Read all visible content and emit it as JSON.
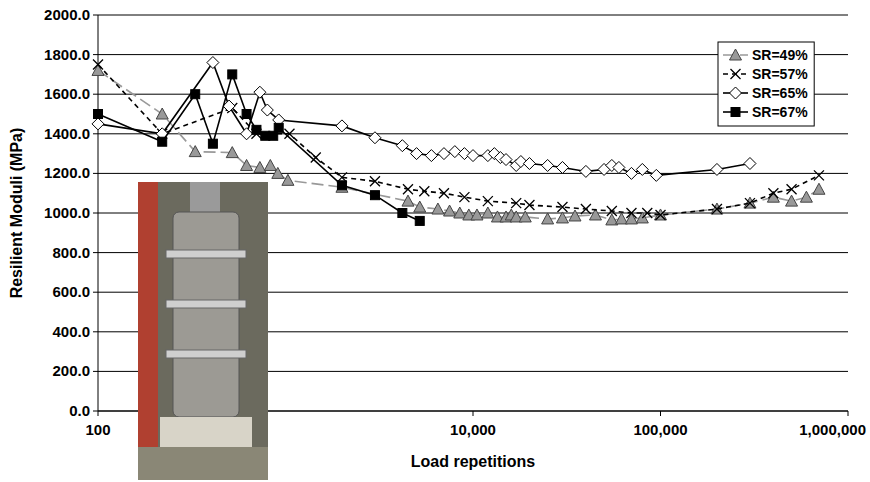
{
  "chart_data": {
    "type": "line",
    "x_label": "Load repetitions",
    "y_label": "Resilient Moduli (MPa)",
    "log": "x",
    "grid": true,
    "legend": "upper right",
    "xlim": [
      100,
      1000000
    ],
    "xticks": [
      100,
      {
        "value": 10000,
        "label": "10,000"
      },
      {
        "value": 100000,
        "label": "100,000"
      },
      {
        "value": 1000000,
        "label": "1,000,000"
      }
    ],
    "ylim": [
      0,
      2000
    ],
    "yticks": [
      {
        "value": 0,
        "label": "0.0"
      },
      {
        "value": 200,
        "label": "200.0"
      },
      {
        "value": 400,
        "label": "400.0"
      },
      {
        "value": 600,
        "label": "600.0"
      },
      {
        "value": 800,
        "label": "800.0"
      },
      {
        "value": 1000,
        "label": "1000.0"
      },
      {
        "value": 1200,
        "label": "1200.0"
      },
      {
        "value": 1400,
        "label": "1400.0"
      },
      {
        "value": 1600,
        "label": "1600.0"
      },
      {
        "value": 1800,
        "label": "1800.0"
      },
      {
        "value": 2000,
        "label": "2000.0"
      }
    ],
    "series": [
      {
        "name": "SR=49%",
        "color": "#999999",
        "marker": "triangle",
        "line_style": "longdash",
        "x": [
          100,
          220,
          330,
          520,
          620,
          730,
          830,
          910,
          1030,
          2000,
          4500,
          5200,
          6500,
          7500,
          8500,
          9500,
          10500,
          12000,
          13500,
          15000,
          16000,
          17000,
          19000,
          25000,
          30000,
          35000,
          45000,
          55000,
          62000,
          70000,
          80000,
          100000,
          200000,
          300000,
          400000,
          500000,
          600000,
          700000
        ],
        "values": [
          1720,
          1500,
          1310,
          1305,
          1240,
          1230,
          1240,
          1200,
          1165,
          1130,
          1060,
          1030,
          1020,
          1010,
          1000,
          990,
          990,
          1000,
          980,
          980,
          990,
          980,
          980,
          970,
          975,
          985,
          990,
          965,
          970,
          970,
          975,
          990,
          1020,
          1050,
          1080,
          1060,
          1080,
          1120
        ]
      },
      {
        "name": "SR=57%",
        "color": "#000000",
        "marker": "x",
        "line_style": "dashed",
        "x": [
          100,
          220,
          520,
          700,
          1050,
          1450,
          2000,
          3000,
          4500,
          5500,
          7000,
          9000,
          12000,
          17000,
          20000,
          30000,
          40000,
          55000,
          70000,
          85000,
          100000,
          200000,
          300000,
          400000,
          500000,
          700000
        ],
        "values": [
          1750,
          1400,
          1530,
          1400,
          1400,
          1280,
          1180,
          1160,
          1120,
          1110,
          1100,
          1080,
          1060,
          1050,
          1040,
          1030,
          1020,
          1010,
          1000,
          1000,
          990,
          1020,
          1050,
          1100,
          1120,
          1190
        ]
      },
      {
        "name": "SR=65%",
        "color": "#000000",
        "marker": "diamond",
        "line_style": "solid",
        "x": [
          100,
          220,
          410,
          500,
          620,
          730,
          800,
          920,
          2000,
          3000,
          4200,
          5000,
          6000,
          7000,
          8000,
          9000,
          10000,
          12000,
          13000,
          14000,
          15000,
          17000,
          18000,
          20000,
          25000,
          30000,
          40000,
          50000,
          55000,
          60000,
          70000,
          80000,
          95000,
          200000,
          300000
        ],
        "values": [
          1450,
          1400,
          1760,
          1540,
          1400,
          1610,
          1520,
          1470,
          1440,
          1380,
          1340,
          1300,
          1290,
          1300,
          1310,
          1300,
          1290,
          1290,
          1300,
          1280,
          1270,
          1240,
          1260,
          1250,
          1240,
          1230,
          1210,
          1220,
          1240,
          1230,
          1200,
          1220,
          1190,
          1220,
          1250
        ]
      },
      {
        "name": "SR=67%",
        "color": "#000000",
        "marker": "square",
        "line_style": "solid",
        "x": [
          100,
          220,
          330,
          410,
          520,
          620,
          700,
          780,
          860,
          920,
          2000,
          3000,
          4200,
          5200
        ],
        "values": [
          1500,
          1360,
          1600,
          1350,
          1700,
          1500,
          1420,
          1390,
          1390,
          1430,
          1140,
          1090,
          1000,
          960
        ]
      }
    ]
  }
}
